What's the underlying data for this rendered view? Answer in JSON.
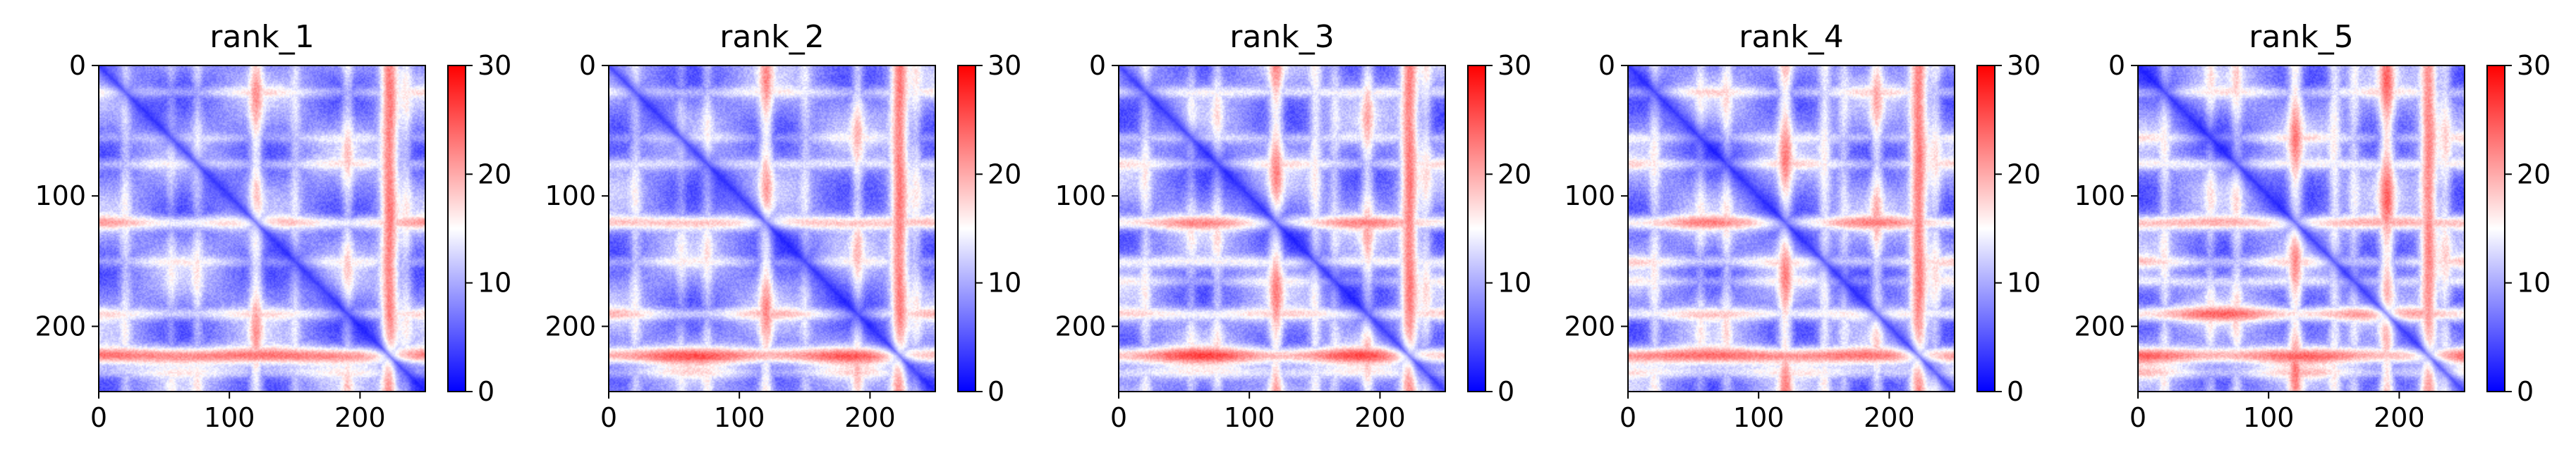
{
  "chart_data": [
    {
      "type": "heatmap",
      "title": "rank_1",
      "xlabel": "",
      "ylabel": "",
      "xlim": [
        0,
        250
      ],
      "ylim": [
        250,
        0
      ],
      "xticks": [
        0,
        100,
        200
      ],
      "yticks": [
        0,
        100,
        200
      ],
      "colorbar": {
        "range": [
          0,
          30
        ],
        "ticks": [
          0,
          10,
          20,
          30
        ],
        "colormap": "bwr",
        "colors": [
          "#0000ff",
          "#ffffff",
          "#ff0000"
        ]
      },
      "bands": [
        [
          20,
          0.35
        ],
        [
          55,
          0.25
        ],
        [
          75,
          0.35
        ],
        [
          120,
          0.65
        ],
        [
          150,
          0.3
        ],
        [
          190,
          0.45
        ],
        [
          222,
          1.0
        ],
        [
          235,
          0.35
        ]
      ],
      "diagonal_valley": true
    },
    {
      "type": "heatmap",
      "title": "rank_2",
      "xlabel": "",
      "ylabel": "",
      "xlim": [
        0,
        250
      ],
      "ylim": [
        250,
        0
      ],
      "xticks": [
        0,
        100,
        200
      ],
      "yticks": [
        0,
        100,
        200
      ],
      "colorbar": {
        "range": [
          0,
          30
        ],
        "ticks": [
          0,
          10,
          20,
          30
        ],
        "colormap": "bwr",
        "colors": [
          "#0000ff",
          "#ffffff",
          "#ff0000"
        ]
      },
      "bands": [
        [
          20,
          0.35
        ],
        [
          55,
          0.25
        ],
        [
          75,
          0.35
        ],
        [
          120,
          0.7
        ],
        [
          150,
          0.3
        ],
        [
          190,
          0.5
        ],
        [
          222,
          1.0
        ],
        [
          235,
          0.35
        ]
      ],
      "diagonal_valley": true
    },
    {
      "type": "heatmap",
      "title": "rank_3",
      "xlabel": "",
      "ylabel": "",
      "xlim": [
        0,
        250
      ],
      "ylim": [
        250,
        0
      ],
      "xticks": [
        0,
        100,
        200
      ],
      "yticks": [
        0,
        100,
        200
      ],
      "colorbar": {
        "range": [
          0,
          30
        ],
        "ticks": [
          0,
          10,
          20,
          30
        ],
        "colormap": "bwr",
        "colors": [
          "#0000ff",
          "#ffffff",
          "#ff0000"
        ]
      },
      "bands": [
        [
          20,
          0.4
        ],
        [
          55,
          0.3
        ],
        [
          75,
          0.4
        ],
        [
          120,
          0.75
        ],
        [
          150,
          0.45
        ],
        [
          165,
          0.3
        ],
        [
          190,
          0.55
        ],
        [
          222,
          1.0
        ],
        [
          235,
          0.4
        ]
      ],
      "diagonal_valley": true
    },
    {
      "type": "heatmap",
      "title": "rank_4",
      "xlabel": "",
      "ylabel": "",
      "xlim": [
        0,
        250
      ],
      "ylim": [
        250,
        0
      ],
      "xticks": [
        0,
        100,
        200
      ],
      "yticks": [
        0,
        100,
        200
      ],
      "colorbar": {
        "range": [
          0,
          30
        ],
        "ticks": [
          0,
          10,
          20,
          30
        ],
        "colormap": "bwr",
        "colors": [
          "#0000ff",
          "#ffffff",
          "#ff0000"
        ]
      },
      "bands": [
        [
          20,
          0.4
        ],
        [
          55,
          0.3
        ],
        [
          75,
          0.4
        ],
        [
          120,
          0.75
        ],
        [
          150,
          0.45
        ],
        [
          165,
          0.3
        ],
        [
          190,
          0.55
        ],
        [
          222,
          1.0
        ],
        [
          235,
          0.4
        ]
      ],
      "diagonal_valley": true
    },
    {
      "type": "heatmap",
      "title": "rank_5",
      "xlabel": "",
      "ylabel": "",
      "xlim": [
        0,
        250
      ],
      "ylim": [
        250,
        0
      ],
      "xticks": [
        0,
        100,
        200
      ],
      "yticks": [
        0,
        100,
        200
      ],
      "colorbar": {
        "range": [
          0,
          30
        ],
        "ticks": [
          0,
          10,
          20,
          30
        ],
        "colormap": "bwr",
        "colors": [
          "#0000ff",
          "#ffffff",
          "#ff0000"
        ]
      },
      "bands": [
        [
          20,
          0.4
        ],
        [
          55,
          0.35
        ],
        [
          75,
          0.45
        ],
        [
          120,
          0.75
        ],
        [
          150,
          0.45
        ],
        [
          165,
          0.35
        ],
        [
          190,
          0.85
        ],
        [
          222,
          0.95
        ],
        [
          235,
          0.45
        ]
      ],
      "diagonal_valley": true
    }
  ]
}
